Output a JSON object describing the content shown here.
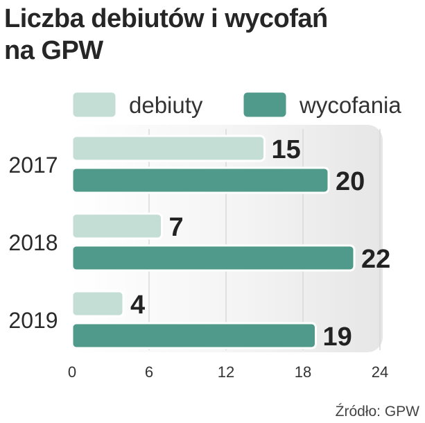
{
  "title_lines": [
    "Liczba debiutów i wycofań",
    "na GPW"
  ],
  "source": "Źródło: GPW",
  "colors": {
    "debiuty": "#c4ddd5",
    "wycofania": "#4f9a8a",
    "panel": "#efefef"
  },
  "chart_data": {
    "type": "bar",
    "orientation": "horizontal",
    "title": "Liczba debiutów i wycofań na GPW",
    "categories": [
      "2017",
      "2018",
      "2019"
    ],
    "series": [
      {
        "name": "debiuty",
        "values": [
          15,
          7,
          4
        ]
      },
      {
        "name": "wycofania",
        "values": [
          20,
          22,
          19
        ]
      }
    ],
    "xlim": [
      0,
      24
    ],
    "xticks": [
      0,
      6,
      12,
      18,
      24
    ],
    "legend": "top",
    "grid": true
  }
}
